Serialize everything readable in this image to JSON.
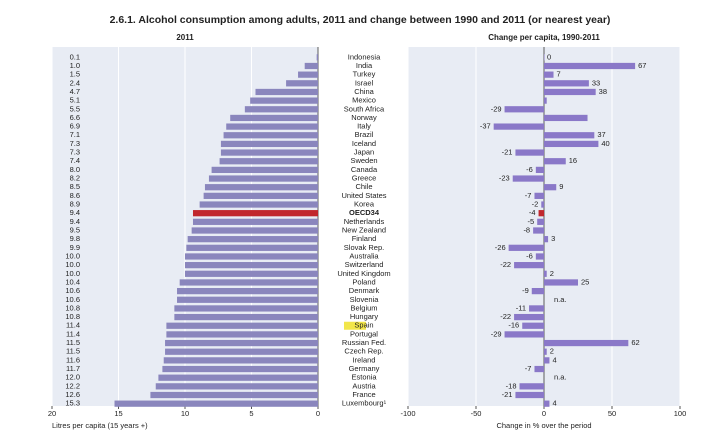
{
  "title": "2.6.1. Alcohol consumption among adults, 2011 and change between 1990 and 2011 (or nearest year)",
  "chart_data": [
    {
      "type": "bar",
      "orientation": "horizontal",
      "subtitle": "2011",
      "xlabel": "Litres per capita (15 years +)",
      "categories": [
        "Indonesia",
        "India",
        "Turkey",
        "Israel",
        "China",
        "Mexico",
        "South Africa",
        "Norway",
        "Italy",
        "Brazil",
        "Iceland",
        "Japan",
        "Sweden",
        "Canada",
        "Greece",
        "Chile",
        "United States",
        "Korea",
        "OECD34",
        "Netherlands",
        "New Zealand",
        "Finland",
        "Slovak Rep.",
        "Australia",
        "Switzerland",
        "United Kingdom",
        "Poland",
        "Denmark",
        "Slovenia",
        "Belgium",
        "Hungary",
        "Spain",
        "Portugal",
        "Russian Fed.",
        "Czech Rep.",
        "Ireland",
        "Germany",
        "Estonia",
        "Austria",
        "France",
        "Luxembourg¹"
      ],
      "category_backgrounds": [
        null,
        null,
        null,
        null,
        null,
        null,
        null,
        null,
        null,
        null,
        null,
        null,
        null,
        null,
        null,
        null,
        null,
        null,
        null,
        null,
        null,
        null,
        null,
        null,
        null,
        null,
        null,
        null,
        null,
        null,
        null,
        "#f2e64a",
        null,
        null,
        null,
        null,
        null,
        null,
        null,
        null,
        null
      ],
      "category_bold": [
        false,
        false,
        false,
        false,
        false,
        false,
        false,
        false,
        false,
        false,
        false,
        false,
        false,
        false,
        false,
        false,
        false,
        false,
        true,
        false,
        false,
        false,
        false,
        false,
        false,
        false,
        false,
        false,
        false,
        false,
        false,
        false,
        false,
        false,
        false,
        false,
        false,
        false,
        false,
        false,
        false
      ],
      "values": [
        0.1,
        1.0,
        1.5,
        2.4,
        4.7,
        5.1,
        5.5,
        6.6,
        6.9,
        7.1,
        7.3,
        7.3,
        7.4,
        8.0,
        8.2,
        8.5,
        8.6,
        8.9,
        9.4,
        9.4,
        9.5,
        9.8,
        9.9,
        10.0,
        10.0,
        10.0,
        10.4,
        10.6,
        10.6,
        10.8,
        10.8,
        11.4,
        11.4,
        11.5,
        11.5,
        11.6,
        11.7,
        12.0,
        12.2,
        12.6,
        15.3
      ],
      "value_labels": [
        "0.1",
        "1.0",
        "1.5",
        "2.4",
        "4.7",
        "5.1",
        "5.5",
        "6.6",
        "6.9",
        "7.1",
        "7.3",
        "7.3",
        "7.4",
        "8.0",
        "8.2",
        "8.5",
        "8.6",
        "8.9",
        "9.4",
        "9.4",
        "9.5",
        "9.8",
        "9.9",
        "10.0",
        "10.0",
        "10.0",
        "10.4",
        "10.6",
        "10.6",
        "10.8",
        "10.8",
        "11.4",
        "11.4",
        "11.5",
        "11.5",
        "11.6",
        "11.7",
        "12.0",
        "12.2",
        "12.6",
        "15.3"
      ],
      "colors": [
        "#8a86bd",
        "#8a86bd",
        "#8a86bd",
        "#8a86bd",
        "#8a86bd",
        "#8a86bd",
        "#8a86bd",
        "#8a86bd",
        "#8a86bd",
        "#8a86bd",
        "#8a86bd",
        "#8a86bd",
        "#8a86bd",
        "#8a86bd",
        "#8a86bd",
        "#8a86bd",
        "#8a86bd",
        "#8a86bd",
        "#c1272d",
        "#8a86bd",
        "#8a86bd",
        "#8a86bd",
        "#8a86bd",
        "#8a86bd",
        "#8a86bd",
        "#8a86bd",
        "#8a86bd",
        "#8a86bd",
        "#8a86bd",
        "#8a86bd",
        "#8a86bd",
        "#8a86bd",
        "#8a86bd",
        "#8a86bd",
        "#8a86bd",
        "#8a86bd",
        "#8a86bd",
        "#8a86bd",
        "#8a86bd",
        "#8a86bd",
        "#8a86bd"
      ],
      "xlim": [
        20,
        0
      ],
      "xticks": [
        20,
        15,
        10,
        5,
        0
      ],
      "grid": true
    },
    {
      "type": "bar",
      "orientation": "horizontal",
      "subtitle": "Change per capita, 1990-2011",
      "xlabel": "Change in % over the period",
      "values": [
        0,
        67,
        7,
        33,
        38,
        2,
        -29,
        32,
        -37,
        37,
        40,
        -21,
        16,
        -6,
        -23,
        9,
        -7,
        -2,
        -4,
        -5,
        -8,
        3,
        -26,
        -6,
        -22,
        2,
        25,
        -9,
        null,
        -11,
        -22,
        -16,
        -29,
        62,
        2,
        4,
        -7,
        null,
        -18,
        -21,
        4
      ],
      "value_labels": [
        "0",
        "67",
        "7",
        "33",
        "38",
        null,
        "-29",
        null,
        "-37",
        "37",
        "40",
        "-21",
        "16",
        "-6",
        "-23",
        "9",
        "-7",
        "-2",
        "-4",
        "-5",
        "-8",
        "3",
        "-26",
        "-6",
        "-22",
        "2",
        "25",
        "-9",
        "n.a.",
        "-11",
        "-22",
        "-16",
        "-29",
        "62",
        "2",
        "4",
        "-7",
        "n.a.",
        "-18",
        "-21",
        "4"
      ],
      "colors": [
        "#8a78c8",
        "#8a78c8",
        "#8a78c8",
        "#8a78c8",
        "#8a78c8",
        "#8a78c8",
        "#8a78c8",
        "#8a78c8",
        "#8a78c8",
        "#8a78c8",
        "#8a78c8",
        "#8a78c8",
        "#8a78c8",
        "#8a78c8",
        "#8a78c8",
        "#8a78c8",
        "#8a78c8",
        "#8a78c8",
        "#c1272d",
        "#8a78c8",
        "#8a78c8",
        "#8a78c8",
        "#8a78c8",
        "#8a78c8",
        "#8a78c8",
        "#8a78c8",
        "#8a78c8",
        "#8a78c8",
        "#8a78c8",
        "#8a78c8",
        "#8a78c8",
        "#8a78c8",
        "#8a78c8",
        "#8a78c8",
        "#8a78c8",
        "#8a78c8",
        "#8a78c8",
        "#8a78c8",
        "#8a78c8",
        "#8a78c8",
        "#8a78c8"
      ],
      "xlim": [
        -100,
        100
      ],
      "xticks": [
        -100,
        -50,
        0,
        50,
        100
      ],
      "grid": true
    }
  ]
}
